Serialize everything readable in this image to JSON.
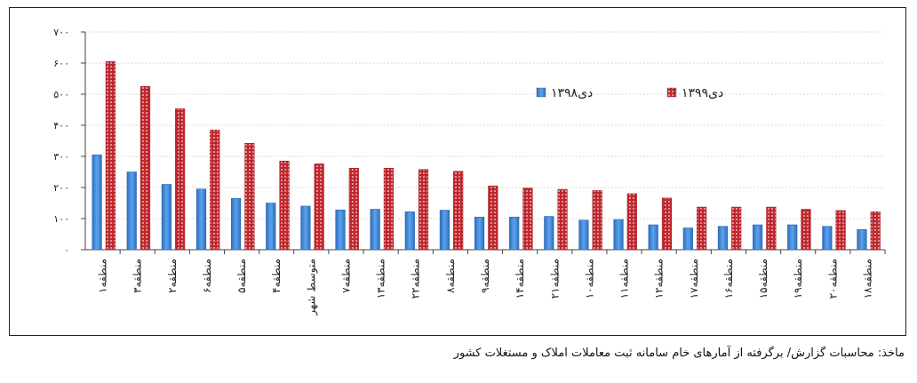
{
  "chart_data": {
    "type": "bar",
    "ylim": [
      0,
      700
    ],
    "yticks": [
      "۰",
      "۱۰۰",
      "۲۰۰",
      "۳۰۰",
      "۴۰۰",
      "۵۰۰",
      "۶۰۰",
      "۷۰۰"
    ],
    "ytick_values": [
      0,
      100,
      200,
      300,
      400,
      500,
      600,
      700
    ],
    "grid": true,
    "legend_position": "center-right",
    "categories": [
      "منطقه۱",
      "منطقه۳",
      "منطقه۲",
      "منطقه۶",
      "منطقه۵",
      "منطقه۴",
      "متوسط شهر",
      "منطقه۷",
      "منطقه۱۳",
      "منطقه۲۲",
      "منطقه۸",
      "منطقه۹",
      "منطقه۱۴",
      "منطقه۲۱",
      "منطقه۱۰",
      "منطقه۱۱",
      "منطقه۱۲",
      "منطقه۱۷",
      "منطقه۱۶",
      "منطقه۱۵",
      "منطقه۱۹",
      "منطقه۲۰",
      "منطقه۱۸"
    ],
    "series": [
      {
        "name": "دی۱۳۹۸",
        "color": "#4a90d9",
        "values": [
          305,
          250,
          210,
          195,
          165,
          150,
          140,
          128,
          130,
          122,
          127,
          105,
          105,
          107,
          95,
          97,
          80,
          70,
          75,
          80,
          80,
          75,
          65
        ]
      },
      {
        "name": "دی۱۳۹۹",
        "color": "#c0272d",
        "values": [
          605,
          525,
          453,
          385,
          342,
          285,
          276,
          262,
          262,
          258,
          252,
          205,
          198,
          194,
          190,
          180,
          166,
          137,
          137,
          137,
          130,
          126,
          122
        ]
      }
    ]
  },
  "source_note": "ماخذ: محاسبات گزارش/ برگرفته از آمارهای خام سامانه ثبت معاملات املاک و مستغلات کشور"
}
